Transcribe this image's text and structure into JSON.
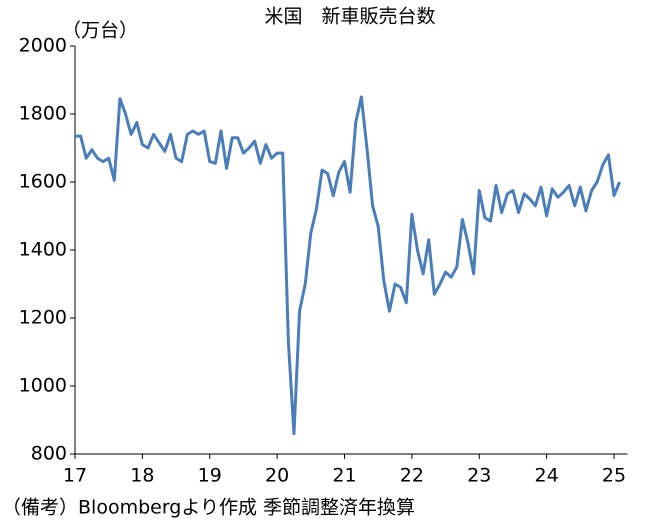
{
  "chart_data": {
    "type": "line",
    "title": "米国　新車販売台数",
    "y_label": "（万台）",
    "note": "（備考）Bloombergより作成 季節調整済年換算",
    "x": [
      17,
      17.083,
      17.167,
      17.25,
      17.333,
      17.417,
      17.5,
      17.583,
      17.667,
      17.75,
      17.833,
      17.917,
      18,
      18.083,
      18.167,
      18.25,
      18.333,
      18.417,
      18.5,
      18.583,
      18.667,
      18.75,
      18.833,
      18.917,
      19,
      19.083,
      19.167,
      19.25,
      19.333,
      19.417,
      19.5,
      19.583,
      19.667,
      19.75,
      19.833,
      19.917,
      20,
      20.083,
      20.167,
      20.25,
      20.333,
      20.417,
      20.5,
      20.583,
      20.667,
      20.75,
      20.833,
      20.917,
      21,
      21.083,
      21.167,
      21.25,
      21.333,
      21.417,
      21.5,
      21.583,
      21.667,
      21.75,
      21.833,
      21.917,
      22,
      22.083,
      22.167,
      22.25,
      22.333,
      22.417,
      22.5,
      22.583,
      22.667,
      22.75,
      22.833,
      22.917,
      23,
      23.083,
      23.167,
      23.25,
      23.333,
      23.417,
      23.5,
      23.583,
      23.667,
      23.75,
      23.833,
      23.917,
      24,
      24.083,
      24.167,
      24.25,
      24.333,
      24.417,
      24.5,
      24.583,
      24.667,
      24.75,
      24.833,
      24.917,
      25,
      25.083
    ],
    "series": [
      {
        "name": "新車販売台数",
        "color": "#4a7ebb",
        "values": [
          1735,
          1735,
          1670,
          1695,
          1670,
          1660,
          1670,
          1605,
          1845,
          1800,
          1740,
          1775,
          1710,
          1700,
          1740,
          1715,
          1690,
          1740,
          1670,
          1660,
          1740,
          1750,
          1740,
          1750,
          1660,
          1655,
          1750,
          1640,
          1730,
          1730,
          1685,
          1700,
          1720,
          1655,
          1710,
          1670,
          1685,
          1685,
          1130,
          860,
          1220,
          1300,
          1450,
          1520,
          1635,
          1625,
          1560,
          1630,
          1660,
          1570,
          1775,
          1850,
          1700,
          1530,
          1470,
          1310,
          1220,
          1300,
          1290,
          1245,
          1505,
          1400,
          1330,
          1430,
          1270,
          1300,
          1335,
          1320,
          1350,
          1490,
          1420,
          1330,
          1575,
          1495,
          1485,
          1590,
          1510,
          1565,
          1575,
          1510,
          1565,
          1550,
          1530,
          1585,
          1500,
          1580,
          1555,
          1570,
          1590,
          1530,
          1585,
          1515,
          1575,
          1600,
          1650,
          1680,
          1560,
          1600
        ]
      }
    ],
    "xlim": [
      17,
      25.2
    ],
    "xticks": [
      17,
      18,
      19,
      20,
      21,
      22,
      23,
      24,
      25
    ],
    "ylim": [
      800,
      2000
    ],
    "yticks": [
      800,
      1000,
      1200,
      1400,
      1600,
      1800,
      2000
    ],
    "grid": false
  }
}
